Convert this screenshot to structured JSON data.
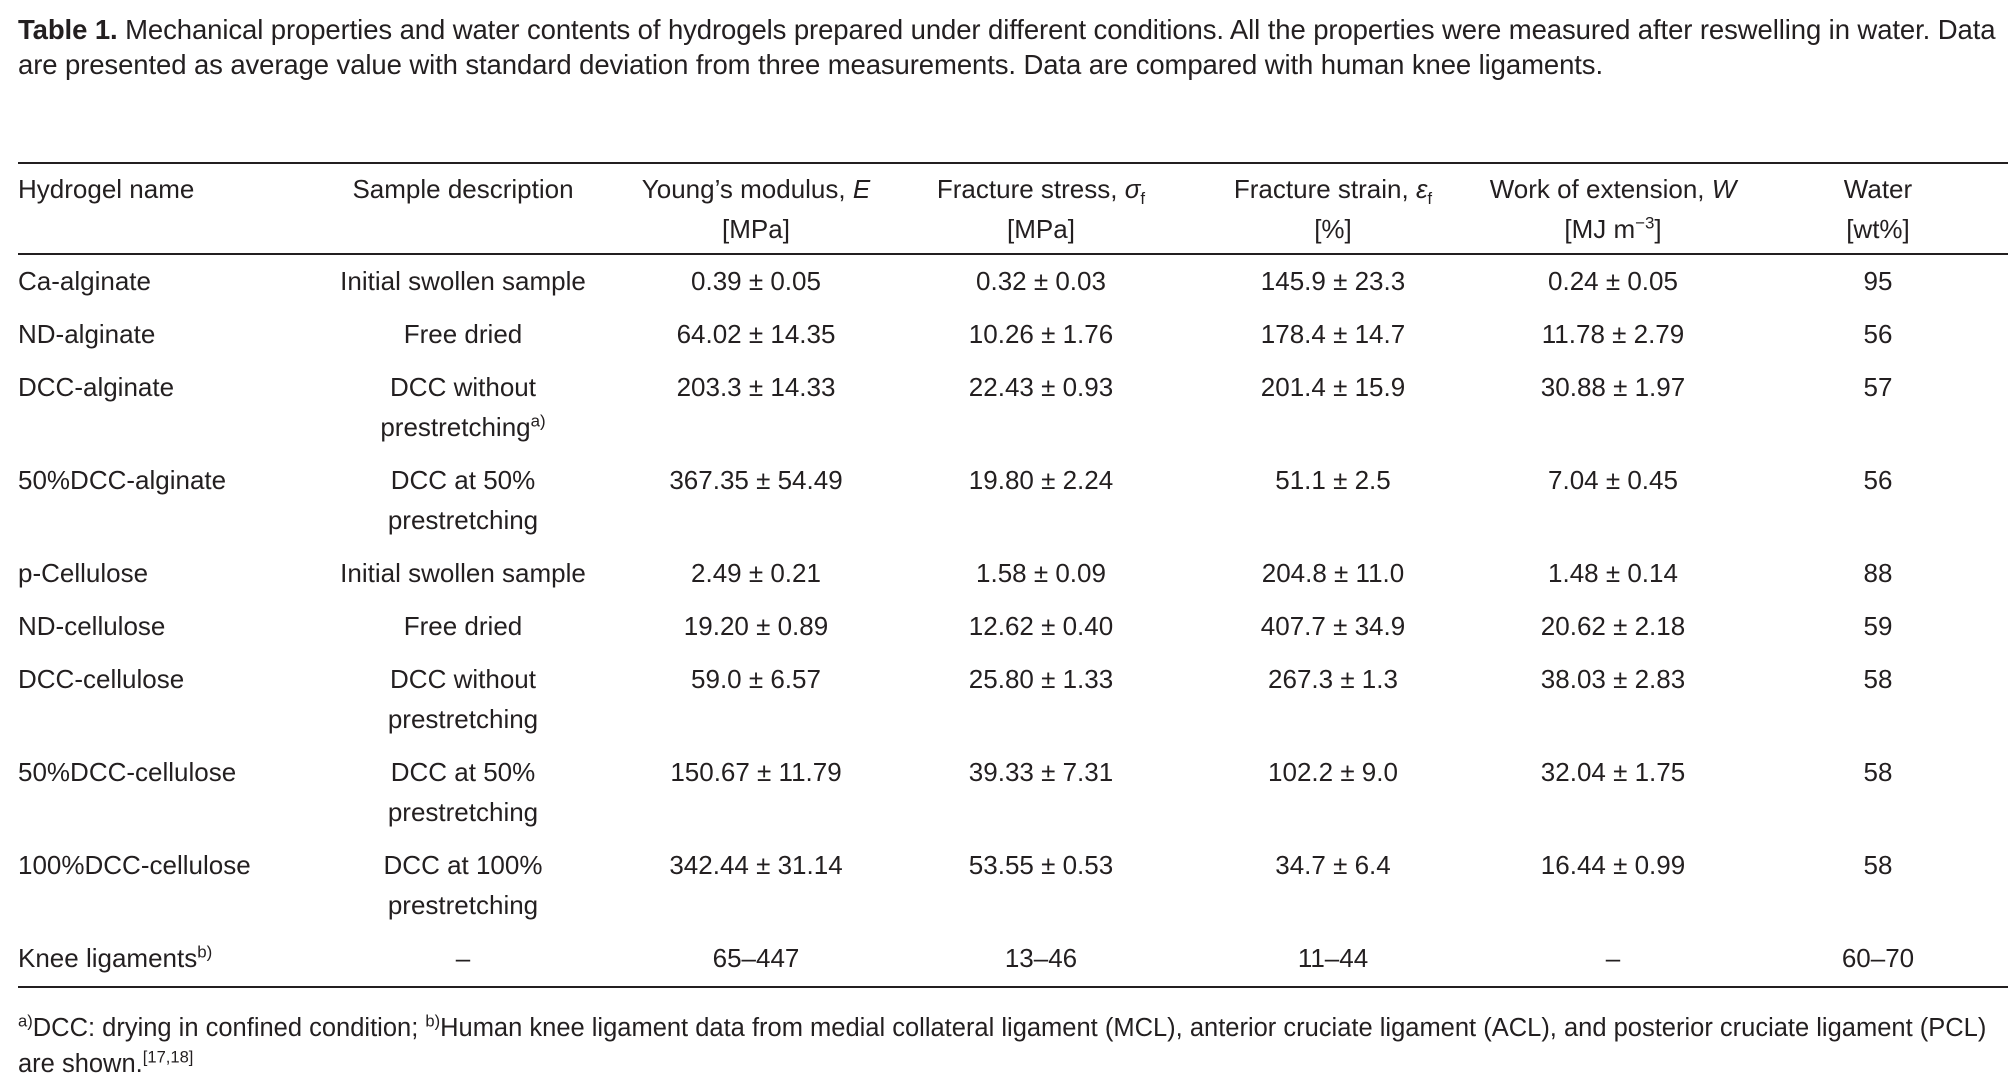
{
  "caption": {
    "label": "Table 1.",
    "text": "Mechanical properties and water contents of hydrogels prepared under different conditions. All the properties were measured after reswelling in water. Data are presented as average value with standard deviation from three measurements. Data are compared with human knee ligaments."
  },
  "headers": {
    "h1": "Hydrogel name",
    "h2": "Sample description",
    "h3_text": "Young’s modulus, ",
    "h3_sym": "E",
    "h3_unit": "[MPa]",
    "h4_text": "Fracture stress, ",
    "h4_sym": "σ",
    "h4_sub": "f",
    "h4_unit": "[MPa]",
    "h5_text": "Fracture strain, ",
    "h5_sym": "ε",
    "h5_sub": "f",
    "h5_unit": "[%]",
    "h6_text": "Work of extension, ",
    "h6_sym": "W",
    "h6_unit_a": "[MJ m",
    "h6_unit_sup": "−3",
    "h6_unit_b": "]",
    "h7": "Water",
    "h7_unit": "[wt%]"
  },
  "rows": [
    {
      "name": "Ca-alginate",
      "name_sup": "",
      "desc1": "Initial swollen sample",
      "desc2": "",
      "desc2_sup": "",
      "E": "0.39 ± 0.05",
      "stress": "0.32 ± 0.03",
      "strain": "145.9 ± 23.3",
      "work": "0.24 ± 0.05",
      "water": "95"
    },
    {
      "name": "ND-alginate",
      "name_sup": "",
      "desc1": "Free dried",
      "desc2": "",
      "desc2_sup": "",
      "E": "64.02 ± 14.35",
      "stress": "10.26 ± 1.76",
      "strain": "178.4 ± 14.7",
      "work": "11.78 ± 2.79",
      "water": "56"
    },
    {
      "name": "DCC-alginate",
      "name_sup": "",
      "desc1": "DCC without",
      "desc2": "prestretching",
      "desc2_sup": "a)",
      "E": "203.3 ± 14.33",
      "stress": "22.43 ± 0.93",
      "strain": "201.4 ± 15.9",
      "work": "30.88 ± 1.97",
      "water": "57"
    },
    {
      "name": "50%DCC-alginate",
      "name_sup": "",
      "desc1": "DCC at 50%",
      "desc2": "prestretching",
      "desc2_sup": "",
      "E": "367.35 ± 54.49",
      "stress": "19.80 ± 2.24",
      "strain": "51.1 ± 2.5",
      "work": "7.04 ± 0.45",
      "water": "56"
    },
    {
      "name": "p-Cellulose",
      "name_sup": "",
      "desc1": "Initial swollen sample",
      "desc2": "",
      "desc2_sup": "",
      "E": "2.49 ± 0.21",
      "stress": "1.58 ± 0.09",
      "strain": "204.8 ± 11.0",
      "work": "1.48 ± 0.14",
      "water": "88"
    },
    {
      "name": "ND-cellulose",
      "name_sup": "",
      "desc1": "Free dried",
      "desc2": "",
      "desc2_sup": "",
      "E": "19.20 ± 0.89",
      "stress": "12.62 ± 0.40",
      "strain": "407.7 ± 34.9",
      "work": "20.62 ± 2.18",
      "water": "59"
    },
    {
      "name": "DCC-cellulose",
      "name_sup": "",
      "desc1": "DCC without",
      "desc2": "prestretching",
      "desc2_sup": "",
      "E": "59.0 ± 6.57",
      "stress": "25.80 ± 1.33",
      "strain": "267.3 ± 1.3",
      "work": "38.03 ± 2.83",
      "water": "58"
    },
    {
      "name": "50%DCC-cellulose",
      "name_sup": "",
      "desc1": "DCC at 50%",
      "desc2": "prestretching",
      "desc2_sup": "",
      "E": "150.67 ± 11.79",
      "stress": "39.33 ± 7.31",
      "strain": "102.2 ± 9.0",
      "work": "32.04 ± 1.75",
      "water": "58"
    },
    {
      "name": "100%DCC-cellulose",
      "name_sup": "",
      "desc1": "DCC at 100%",
      "desc2": "prestretching",
      "desc2_sup": "",
      "E": "342.44 ± 31.14",
      "stress": "53.55 ± 0.53",
      "strain": "34.7 ± 6.4",
      "work": "16.44 ± 0.99",
      "water": "58"
    },
    {
      "name": "Knee ligaments",
      "name_sup": "b)",
      "desc1": "–",
      "desc2": "",
      "desc2_sup": "",
      "E": "65–447",
      "stress": "13–46",
      "strain": "11–44",
      "work": "–",
      "water": "60–70"
    }
  ],
  "footnote": {
    "a_mark": "a)",
    "a_text": "DCC: drying in confined condition; ",
    "b_mark": "b)",
    "b_text": "Human knee ligament data from medial collateral ligament (MCL), anterior cruciate ligament (ACL), and posterior cruciate ligament (PCL) are shown.",
    "ref": "[17,18]"
  }
}
